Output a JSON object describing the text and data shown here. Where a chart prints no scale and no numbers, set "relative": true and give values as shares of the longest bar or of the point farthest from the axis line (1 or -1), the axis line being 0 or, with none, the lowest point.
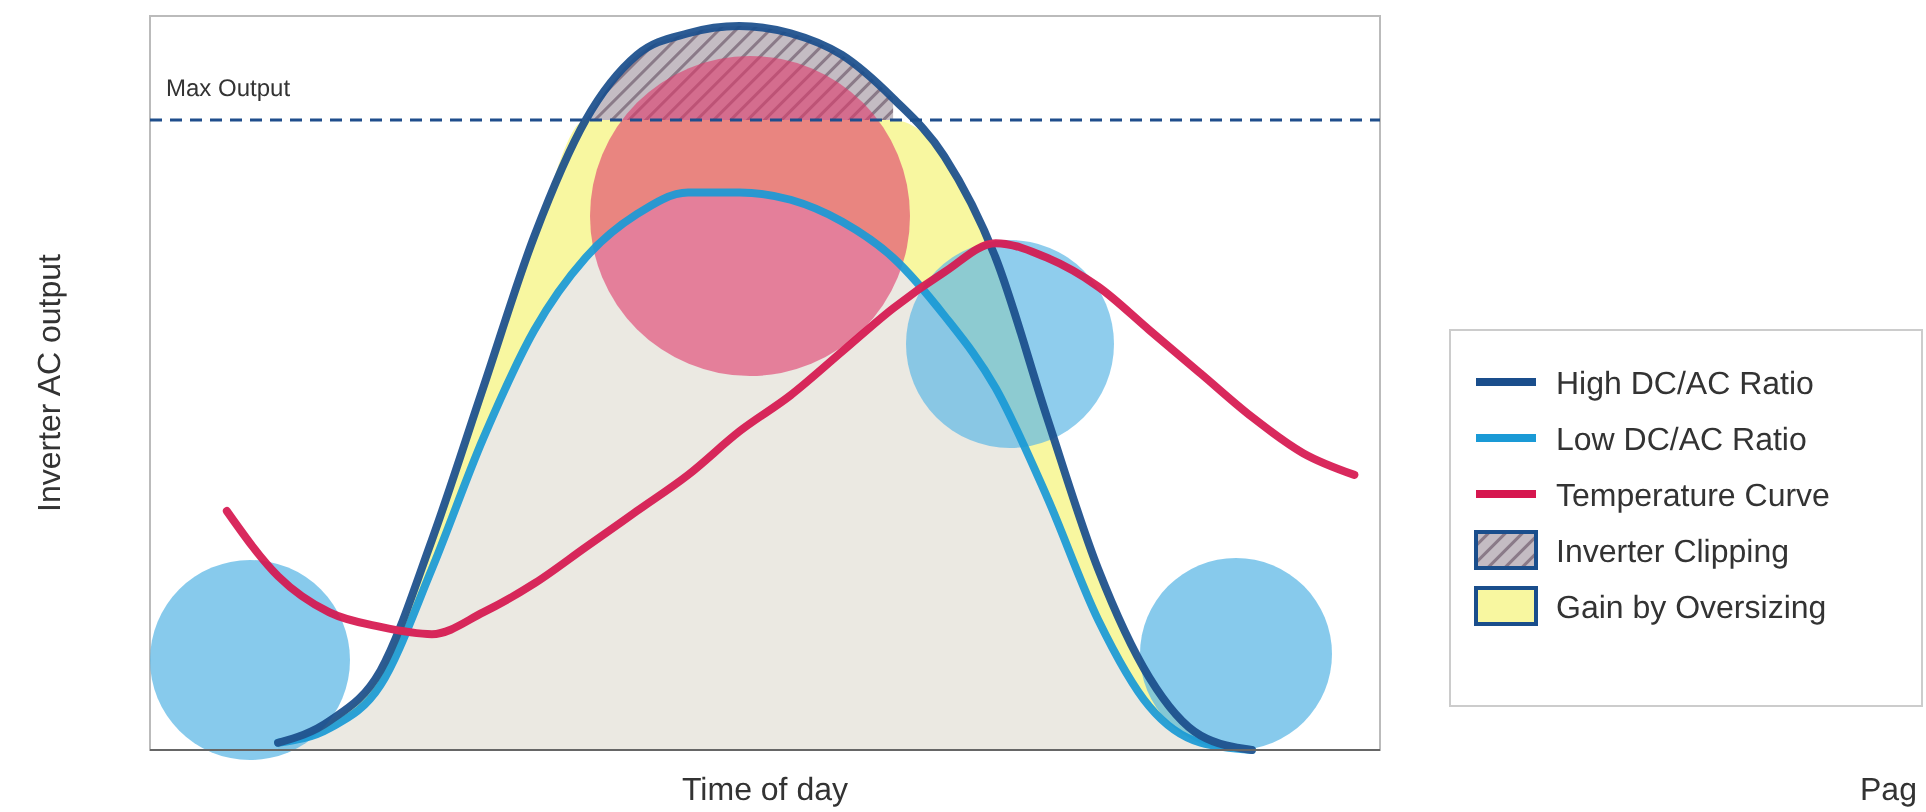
{
  "chart_data": {
    "type": "line",
    "relative": true,
    "xlabel": "Time of day",
    "ylabel": "Inverter AC output",
    "legend": "right",
    "categories": [
      null,
      null,
      null,
      null,
      null,
      null,
      null,
      null,
      null,
      null,
      null,
      null,
      null,
      null,
      null,
      null,
      null,
      null,
      null,
      null,
      null,
      null,
      null,
      null
    ],
    "series": [
      {
        "name": "High DC/AC Ratio",
        "color": "#1a4e8c",
        "values": [
          null,
          null,
          0.01,
          0.04,
          0.11,
          0.29,
          0.5,
          0.71,
          0.87,
          0.96,
          0.99,
          1.0,
          0.99,
          0.96,
          0.9,
          0.82,
          0.68,
          0.46,
          0.25,
          0.1,
          0.02,
          0,
          null,
          null
        ]
      },
      {
        "name": "Low DC/AC Ratio",
        "type": "area",
        "color": "#1a9ad6",
        "values": [
          null,
          null,
          0.01,
          0.03,
          0.09,
          0.25,
          0.43,
          0.58,
          0.68,
          0.74,
          0.77,
          0.77,
          0.76,
          0.73,
          0.68,
          0.6,
          0.5,
          0.35,
          0.18,
          0.06,
          0.01,
          0,
          null,
          null
        ]
      },
      {
        "name": "Temperature Curve",
        "color": "#d6174f",
        "values": [
          null,
          0.33,
          0.24,
          0.19,
          0.17,
          0.16,
          0.19,
          0.23,
          0.28,
          0.33,
          0.38,
          0.44,
          0.49,
          0.55,
          0.61,
          0.66,
          0.7,
          0.68,
          0.64,
          0.58,
          0.52,
          0.46,
          0.41,
          0.38
        ]
      },
      {
        "name": "Inverter Clipping",
        "type": "area",
        "color": "#8a7a88",
        "values": [
          null,
          null,
          null,
          null,
          null,
          null,
          null,
          null,
          0.87,
          0.96,
          0.99,
          1.0,
          0.99,
          0.96,
          0.9,
          null,
          null,
          null,
          null,
          null,
          null,
          null,
          null,
          null
        ]
      },
      {
        "name": "Gain by Oversizing",
        "type": "area",
        "color": "#f8f7a0",
        "values": [
          null,
          null,
          0.01,
          0.04,
          0.11,
          0.29,
          0.5,
          0.71,
          0.87,
          0.87,
          0.87,
          0.87,
          0.87,
          0.87,
          0.87,
          0.82,
          0.68,
          0.46,
          0.25,
          0.1,
          0.02,
          0,
          null,
          null
        ]
      }
    ],
    "ref_lines": [
      {
        "axis": "y",
        "value": 0.87,
        "label": "Max Output",
        "color": "#1f4e8c",
        "line_style": "dashed"
      }
    ],
    "annotations": [
      "Pag"
    ]
  }
}
